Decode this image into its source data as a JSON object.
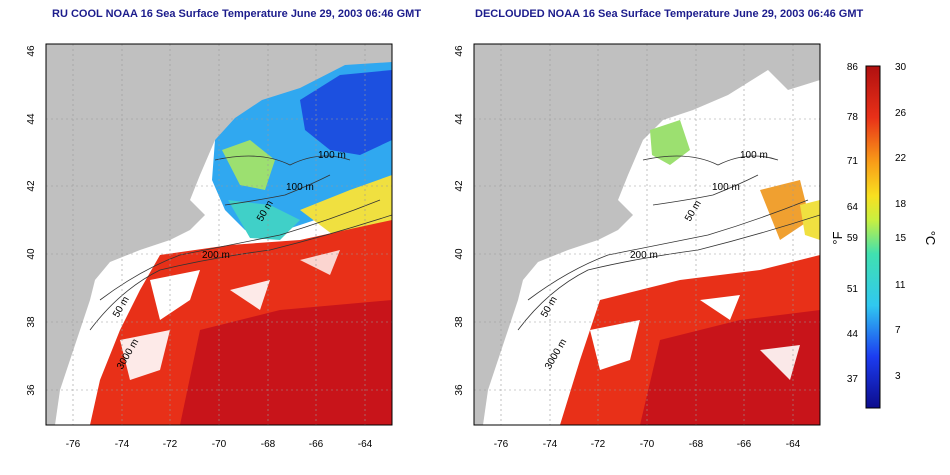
{
  "titles": {
    "left": "RU COOL NOAA 16 Sea Surface Temperature June 29, 2003 06:46 GMT",
    "right": "DECLOUDED NOAA 16 Sea Surface Temperature June 29, 2003 06:46 GMT"
  },
  "axes": {
    "lon_ticks": [
      "-76",
      "-74",
      "-72",
      "-70",
      "-68",
      "-66",
      "-64"
    ],
    "lat_ticks": [
      "36",
      "38",
      "40",
      "42",
      "44",
      "46"
    ]
  },
  "contour_labels": [
    "100 m",
    "100 m",
    "50 m",
    "200 m",
    "50 m",
    "3000 m"
  ],
  "colorbar": {
    "f_ticks": [
      "86",
      "78",
      "71",
      "64",
      "59",
      "51",
      "44",
      "37"
    ],
    "c_ticks": [
      "30",
      "26",
      "22",
      "18",
      "15",
      "11",
      "7",
      "3"
    ],
    "f_label": "°F",
    "c_label": "°C"
  },
  "colors": {
    "land": "#c0c0c0",
    "cloud": "#ffffff",
    "title": "#1c1c8c",
    "warm": "#e8301c",
    "hot": "#c8141a",
    "orange": "#f08a1c",
    "yellow": "#f0e030",
    "green": "#7cd04c",
    "cyan": "#30c8e8",
    "blue": "#1c50e0",
    "navy": "#0c1ca0"
  }
}
